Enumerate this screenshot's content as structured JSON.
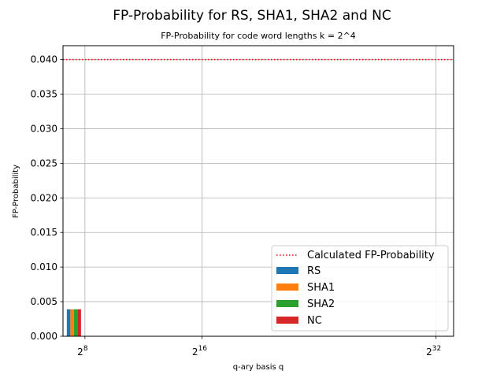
{
  "chart_data": {
    "type": "bar",
    "title": "FP-Probability for RS, SHA1, SHA2 and NC",
    "subtitle": "FP-Probability for code word lengths k = 2^4",
    "xlabel": "q-ary basis q",
    "ylabel": "FP-Probability",
    "x_scale": "log2",
    "xlim_exponent": [
      6.5,
      33.2
    ],
    "ylim": [
      0,
      0.042
    ],
    "x_ticks": [
      {
        "base": "2",
        "exp": "8",
        "exponent": 8
      },
      {
        "base": "2",
        "exp": "16",
        "exponent": 16
      },
      {
        "base": "2",
        "exp": "32",
        "exponent": 32
      }
    ],
    "y_ticks": [
      "0.000",
      "0.005",
      "0.010",
      "0.015",
      "0.020",
      "0.025",
      "0.030",
      "0.035",
      "0.040"
    ],
    "y_tick_values": [
      0,
      0.005,
      0.01,
      0.015,
      0.02,
      0.025,
      0.03,
      0.035,
      0.04
    ],
    "grid": true,
    "legend_position": "lower-right",
    "reference_line": {
      "name": "Calculated FP-Probability",
      "value": 0.04,
      "style": "dotted",
      "color": "#ff0000"
    },
    "categories_exponent": [
      8
    ],
    "series": [
      {
        "name": "RS",
        "values": [
          0.0039
        ],
        "color": "#1f77b4"
      },
      {
        "name": "SHA1",
        "values": [
          0.0039
        ],
        "color": "#ff7f0e"
      },
      {
        "name": "SHA2",
        "values": [
          0.0039
        ],
        "color": "#2ca02c"
      },
      {
        "name": "NC",
        "values": [
          0.0039
        ],
        "color": "#d62728"
      }
    ]
  }
}
